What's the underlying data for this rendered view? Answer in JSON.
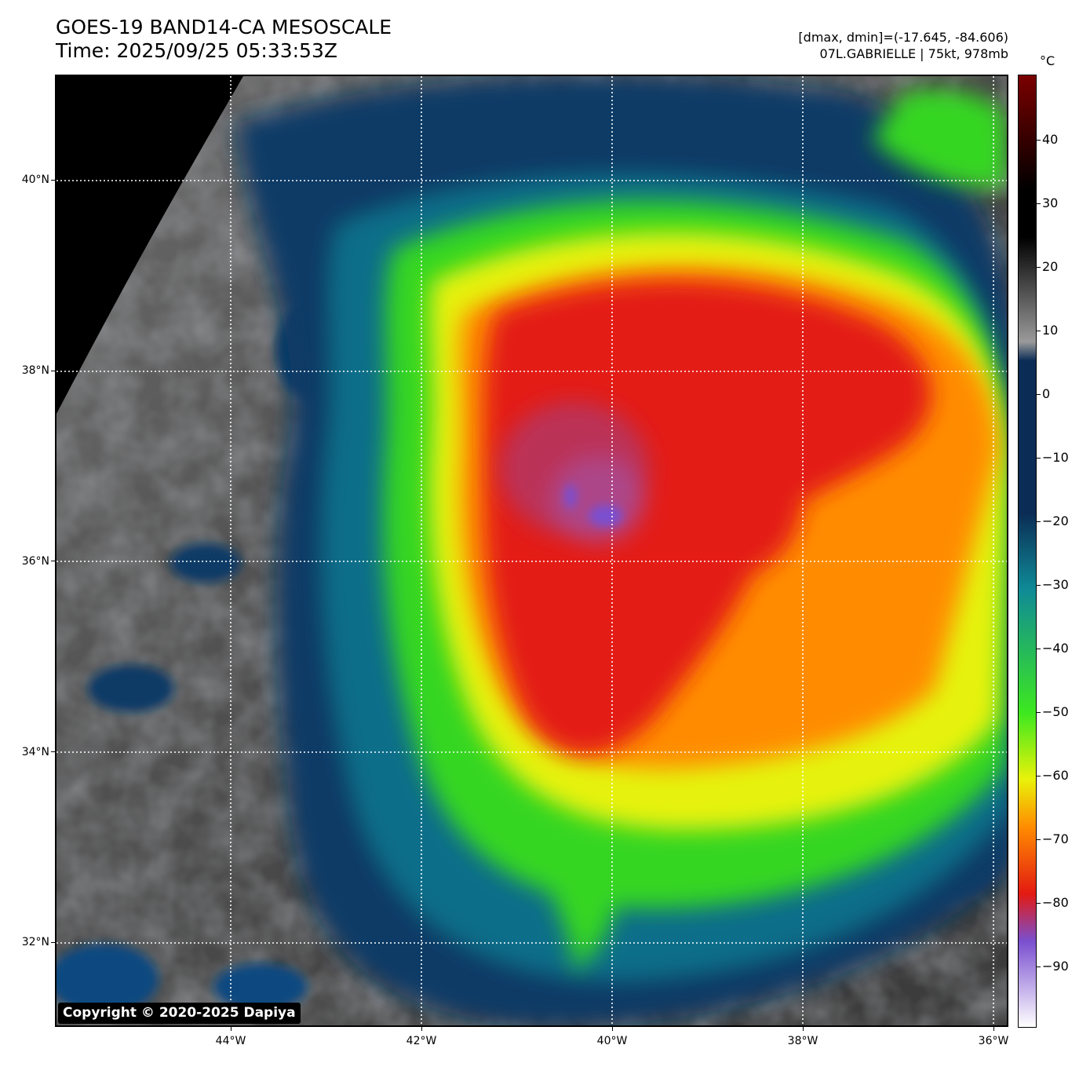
{
  "header": {
    "title_line1": "GOES-19 BAND14-CA MESOSCALE",
    "title_line2": "Time: 2025/09/25 05:33:53Z",
    "meta_line1": "[dmax, dmin]=(-17.645, -84.606)",
    "meta_line2": "07L.GABRIELLE | 75kt, 978mb"
  },
  "map": {
    "lat_labels": [
      "40°N",
      "38°N",
      "36°N",
      "34°N",
      "32°N"
    ],
    "lon_labels": [
      "44°W",
      "42°W",
      "40°W",
      "38°W",
      "36°W"
    ],
    "copyright": "Copyright © 2020-2025 Dapiya"
  },
  "colorbar": {
    "unit": "°C",
    "tick_labels": [
      "40",
      "30",
      "20",
      "10",
      "0",
      "−10",
      "−20",
      "−30",
      "−40",
      "−50",
      "−60",
      "−70",
      "−80",
      "−90"
    ],
    "colors": {
      "warmest": "#7a0000",
      "black": "#000000",
      "gray": "#9a9a9a",
      "navy": "#0b2c55",
      "teal": "#0f8a96",
      "green": "#3de81f",
      "yellow": "#e9f20a",
      "orange": "#ff8c00",
      "red": "#e31a12",
      "purple": "#7a4fd0",
      "coldest": "#ffffff"
    }
  }
}
